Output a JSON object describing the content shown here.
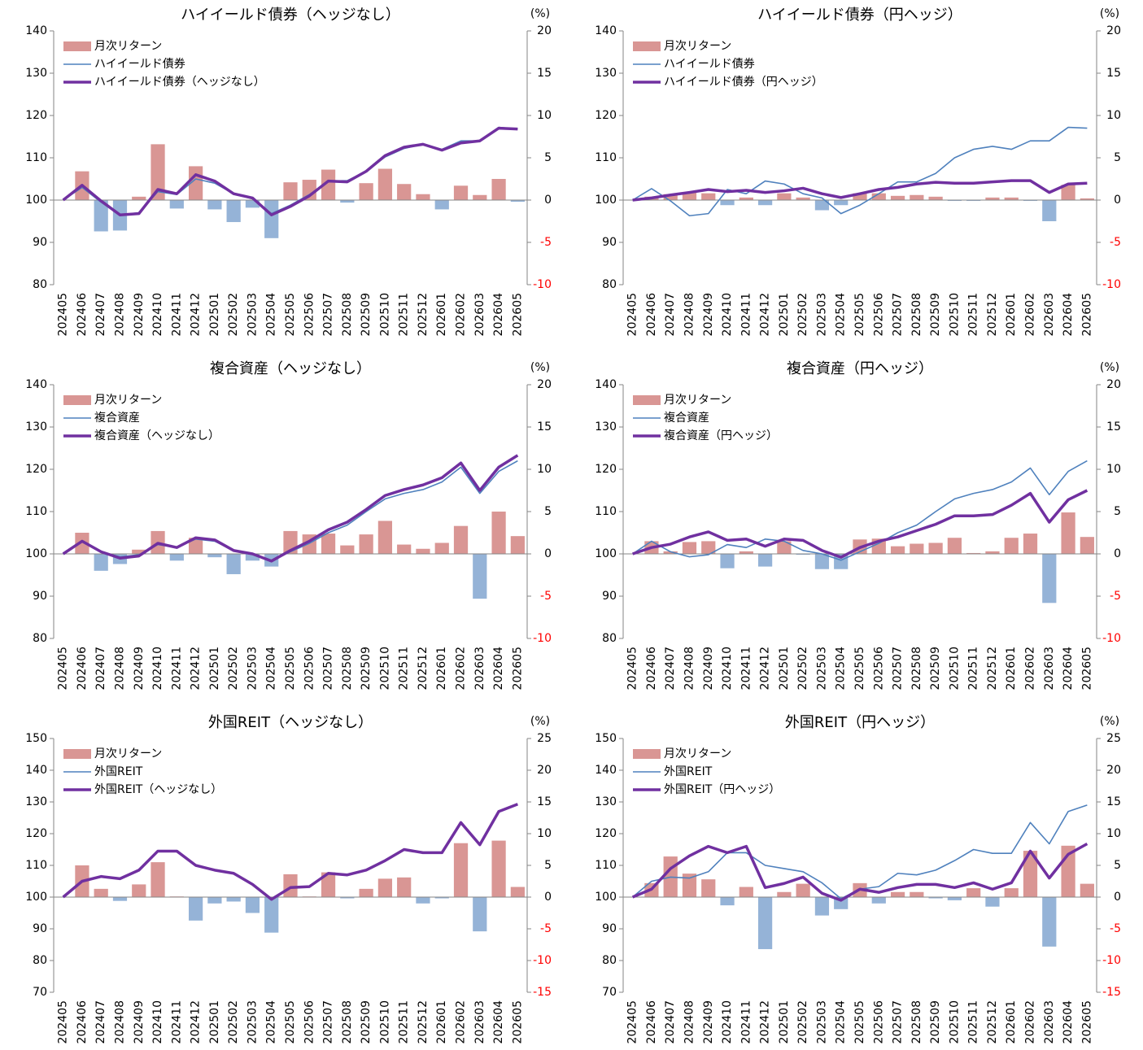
{
  "chart_data": [
    {
      "type": "bar_line",
      "title": "ハイイールド債券（ヘッジなし）",
      "y2label": "(%)",
      "legend": "upper left",
      "categories": [
        "202405",
        "202406",
        "202407",
        "202408",
        "202409",
        "202410",
        "202411",
        "202412",
        "202501",
        "202502",
        "202503",
        "202504",
        "202505",
        "202506",
        "202507",
        "202508",
        "202509",
        "202510",
        "202511",
        "202512",
        "202601",
        "202602",
        "202603",
        "202604",
        "202605"
      ],
      "ylim": [
        80,
        140
      ],
      "yticks": [
        80,
        90,
        100,
        110,
        120,
        130,
        140
      ],
      "y2lim": [
        -10,
        20
      ],
      "y2ticks": [
        -10,
        -5,
        0,
        5,
        10,
        15,
        20
      ],
      "y2tick_negative_color": "#ff0000",
      "series": [
        {
          "name": "月次リターン",
          "type": "bar",
          "axis": "y2",
          "color": "#d99694",
          "negative_color": "#95b3d7",
          "values": [
            null,
            3.4,
            -3.7,
            -3.6,
            0.4,
            6.6,
            -1.0,
            4.0,
            -1.1,
            -2.6,
            -0.9,
            -4.5,
            2.1,
            2.4,
            3.6,
            -0.3,
            2.0,
            3.7,
            1.9,
            0.7,
            -1.1,
            1.7,
            0.6,
            2.5,
            -0.2
          ]
        },
        {
          "name": "ハイイールド債券",
          "type": "line",
          "color": "#4f81bd",
          "values": [
            100,
            103,
            99.5,
            96.5,
            97.0,
            102,
            101.3,
            105,
            104,
            101.5,
            100.3,
            96.8,
            98.8,
            101.3,
            104.5,
            104.6,
            106.8,
            110.2,
            112.2,
            113.2,
            112,
            114,
            114,
            117.2,
            116.8
          ]
        },
        {
          "name": "ハイイールド債券（ヘッジなし）",
          "type": "line",
          "color": "#7030a0",
          "values": [
            100,
            103.5,
            99.8,
            96.5,
            96.8,
            102.5,
            101.5,
            106,
            104.5,
            101.5,
            100.5,
            96.5,
            98.5,
            101,
            104.5,
            104.3,
            106.8,
            110.5,
            112.5,
            113.2,
            111.8,
            113.5,
            114,
            117,
            116.8
          ]
        }
      ]
    },
    {
      "type": "bar_line",
      "title": "ハイイールド債券（円ヘッジ）",
      "y2label": "(%)",
      "legend": "upper left",
      "categories": [
        "202405",
        "202406",
        "202407",
        "202408",
        "202409",
        "202410",
        "202411",
        "202412",
        "202501",
        "202502",
        "202503",
        "202504",
        "202505",
        "202506",
        "202507",
        "202508",
        "202509",
        "202510",
        "202511",
        "202512",
        "202601",
        "202602",
        "202603",
        "202604",
        "202605"
      ],
      "ylim": [
        80,
        140
      ],
      "yticks": [
        80,
        90,
        100,
        110,
        120,
        130,
        140
      ],
      "y2lim": [
        -10,
        20
      ],
      "y2ticks": [
        -10,
        -5,
        0,
        5,
        10,
        15,
        20
      ],
      "y2tick_negative_color": "#ff0000",
      "series": [
        {
          "name": "月次リターン",
          "type": "bar",
          "axis": "y2",
          "color": "#d99694",
          "negative_color": "#95b3d7",
          "values": [
            null,
            0.4,
            0.7,
            0.9,
            0.8,
            -0.6,
            0.3,
            -0.6,
            0.8,
            0.3,
            -1.2,
            -0.6,
            0.8,
            0.8,
            0.5,
            0.6,
            0.4,
            -0.1,
            -0.1,
            0.3,
            0.3,
            -0.1,
            -2.5,
            1.8,
            0.2
          ]
        },
        {
          "name": "ハイイールド債券",
          "type": "line",
          "color": "#4f81bd",
          "values": [
            100,
            102.7,
            99.8,
            96.3,
            96.8,
            102.5,
            101.5,
            104.5,
            103.8,
            101.5,
            100.5,
            96.8,
            98.8,
            101.5,
            104.3,
            104.3,
            106.3,
            110,
            112,
            112.7,
            112,
            114,
            114,
            117.2,
            117
          ]
        },
        {
          "name": "ハイイールド債券（円ヘッジ）",
          "type": "line",
          "color": "#7030a0",
          "values": [
            100,
            100.5,
            101.2,
            101.8,
            102.5,
            102,
            102.3,
            101.8,
            102.2,
            102.8,
            101.5,
            100.6,
            101.5,
            102.5,
            103,
            103.8,
            104.2,
            104,
            104,
            104.3,
            104.6,
            104.6,
            101.8,
            103.8,
            104
          ]
        }
      ]
    },
    {
      "type": "bar_line",
      "title": "複合資産（ヘッジなし）",
      "y2label": "(%)",
      "legend": "upper left",
      "categories": [
        "202405",
        "202406",
        "202407",
        "202408",
        "202409",
        "202410",
        "202411",
        "202412",
        "202501",
        "202502",
        "202503",
        "202504",
        "202505",
        "202506",
        "202507",
        "202508",
        "202509",
        "202510",
        "202511",
        "202512",
        "202601",
        "202602",
        "202603",
        "202604",
        "202605"
      ],
      "ylim": [
        80,
        140
      ],
      "yticks": [
        80,
        90,
        100,
        110,
        120,
        130,
        140
      ],
      "y2lim": [
        -10,
        20
      ],
      "y2ticks": [
        -10,
        -5,
        0,
        5,
        10,
        15,
        20
      ],
      "y2tick_negative_color": "#ff0000",
      "series": [
        {
          "name": "月次リターン",
          "type": "bar",
          "axis": "y2",
          "color": "#d99694",
          "negative_color": "#95b3d7",
          "values": [
            null,
            2.5,
            -2.0,
            -1.2,
            0.5,
            2.7,
            -0.8,
            1.9,
            -0.4,
            -2.4,
            -0.8,
            -1.5,
            2.7,
            2.3,
            2.4,
            1.0,
            2.3,
            3.9,
            1.1,
            0.6,
            1.3,
            3.3,
            -5.3,
            5.0,
            2.1
          ]
        },
        {
          "name": "複合資産",
          "type": "line",
          "color": "#4f81bd",
          "values": [
            100,
            103,
            100.5,
            99.3,
            99.8,
            102.2,
            101.5,
            103.5,
            103,
            100.8,
            100,
            98.5,
            100.5,
            102.5,
            105,
            106.8,
            110,
            113,
            114.3,
            115.2,
            117,
            120.5,
            114.3,
            119.5,
            122
          ]
        },
        {
          "name": "複合資産（ヘッジなし）",
          "type": "line",
          "color": "#7030a0",
          "values": [
            100,
            103,
            100.5,
            99,
            99.5,
            102.5,
            101.5,
            103.8,
            103.3,
            100.8,
            100,
            98.3,
            100.8,
            103,
            105.7,
            107.5,
            110.5,
            113.8,
            115.2,
            116.3,
            118,
            121.5,
            115,
            120.5,
            123.3
          ]
        }
      ]
    },
    {
      "type": "bar_line",
      "title": "複合資産（円ヘッジ）",
      "y2label": "(%)",
      "legend": "upper left",
      "categories": [
        "202405",
        "202406",
        "202407",
        "202408",
        "202409",
        "202410",
        "202411",
        "202412",
        "202501",
        "202502",
        "202503",
        "202504",
        "202505",
        "202506",
        "202507",
        "202508",
        "202509",
        "202510",
        "202511",
        "202512",
        "202601",
        "202602",
        "202603",
        "202604",
        "202605"
      ],
      "ylim": [
        80,
        140
      ],
      "yticks": [
        80,
        90,
        100,
        110,
        120,
        130,
        140
      ],
      "y2lim": [
        -10,
        20
      ],
      "y2ticks": [
        -10,
        -5,
        0,
        5,
        10,
        15,
        20
      ],
      "y2tick_negative_color": "#ff0000",
      "series": [
        {
          "name": "月次リターン",
          "type": "bar",
          "axis": "y2",
          "color": "#d99694",
          "negative_color": "#95b3d7",
          "values": [
            null,
            1.5,
            0.3,
            1.4,
            1.5,
            -1.7,
            0.3,
            -1.5,
            1.5,
            -0.1,
            -1.8,
            -1.8,
            1.7,
            1.8,
            0.9,
            1.2,
            1.3,
            1.9,
            0.1,
            0.3,
            1.9,
            2.4,
            -5.8,
            4.9,
            2.0
          ]
        },
        {
          "name": "複合資産",
          "type": "line",
          "color": "#4f81bd",
          "values": [
            100,
            103,
            100.5,
            99.3,
            99.8,
            102.2,
            101.5,
            103.5,
            103,
            100.8,
            100,
            98.5,
            100.5,
            102.5,
            105,
            106.8,
            110,
            113,
            114.3,
            115.2,
            117,
            120.3,
            114,
            119.5,
            122
          ]
        },
        {
          "name": "複合資産（円ヘッジ）",
          "type": "line",
          "color": "#7030a0",
          "values": [
            100,
            101.5,
            102.3,
            104,
            105.2,
            103.2,
            103.5,
            101.8,
            103.5,
            103.2,
            100.8,
            99.2,
            101.5,
            103,
            104,
            105.5,
            107,
            109,
            109,
            109.3,
            111.5,
            114.3,
            107.5,
            112.8,
            115
          ]
        }
      ]
    },
    {
      "type": "bar_line",
      "title": "外国REIT（ヘッジなし）",
      "y2label": "(%)",
      "legend": "upper left",
      "categories": [
        "202405",
        "202406",
        "202407",
        "202408",
        "202409",
        "202410",
        "202411",
        "202412",
        "202501",
        "202502",
        "202503",
        "202504",
        "202505",
        "202506",
        "202507",
        "202508",
        "202509",
        "202510",
        "202511",
        "202512",
        "202601",
        "202602",
        "202603",
        "202604",
        "202605"
      ],
      "ylim": [
        70,
        150
      ],
      "yticks": [
        70,
        80,
        90,
        100,
        110,
        120,
        130,
        140,
        150
      ],
      "y2lim": [
        -15,
        25
      ],
      "y2ticks": [
        -15,
        -10,
        -5,
        0,
        5,
        10,
        15,
        20,
        25
      ],
      "y2tick_negative_color": "#ff0000",
      "series": [
        {
          "name": "月次リターン",
          "type": "bar",
          "axis": "y2",
          "color": "#d99694",
          "negative_color": "#95b3d7",
          "values": [
            null,
            5.0,
            1.3,
            -0.6,
            2.0,
            5.5,
            0.1,
            -3.7,
            -1.0,
            -0.7,
            -2.5,
            -5.6,
            3.6,
            0.1,
            3.9,
            -0.2,
            1.3,
            2.9,
            3.1,
            -1.0,
            -0.2,
            8.5,
            -5.4,
            8.9,
            1.6
          ]
        },
        {
          "name": "外国REIT",
          "type": "line",
          "color": "#4f81bd",
          "values": [
            100,
            105,
            106.3,
            105.7,
            108.3,
            114.3,
            114.3,
            110,
            108.6,
            107.5,
            104,
            99.5,
            103,
            103.3,
            107.3,
            107,
            108.5,
            111.5,
            115,
            114,
            114,
            123.5,
            116.5,
            127,
            129.2
          ]
        },
        {
          "name": "外国REIT（ヘッジなし）",
          "type": "line",
          "color": "#7030a0",
          "values": [
            100,
            105,
            106.5,
            105.8,
            108.5,
            114.5,
            114.5,
            110,
            108.5,
            107.5,
            104,
            99.3,
            103,
            103.3,
            107.5,
            107,
            108.5,
            111.5,
            115,
            114,
            114,
            123.5,
            116.5,
            127,
            129.3
          ]
        }
      ]
    },
    {
      "type": "bar_line",
      "title": "外国REIT（円ヘッジ）",
      "y2label": "(%)",
      "legend": "upper left",
      "categories": [
        "202405",
        "202406",
        "202407",
        "202408",
        "202409",
        "202410",
        "202411",
        "202412",
        "202501",
        "202502",
        "202503",
        "202504",
        "202505",
        "202506",
        "202507",
        "202508",
        "202509",
        "202510",
        "202511",
        "202512",
        "202601",
        "202602",
        "202603",
        "202604",
        "202605"
      ],
      "ylim": [
        70,
        150
      ],
      "yticks": [
        70,
        80,
        90,
        100,
        110,
        120,
        130,
        140,
        150
      ],
      "y2lim": [
        -15,
        25
      ],
      "y2ticks": [
        -15,
        -10,
        -5,
        0,
        5,
        10,
        15,
        20,
        25
      ],
      "y2tick_negative_color": "#ff0000",
      "series": [
        {
          "name": "月次リターン",
          "type": "bar",
          "axis": "y2",
          "color": "#d99694",
          "negative_color": "#95b3d7",
          "values": [
            null,
            2.2,
            6.4,
            3.7,
            2.8,
            -1.3,
            1.6,
            -8.2,
            0.8,
            2.1,
            -2.9,
            -1.9,
            2.2,
            -1.0,
            0.8,
            0.8,
            -0.2,
            -0.5,
            1.4,
            -1.5,
            1.4,
            7.3,
            -7.8,
            8.1,
            2.1
          ]
        },
        {
          "name": "外国REIT",
          "type": "line",
          "color": "#4f81bd",
          "values": [
            100,
            105,
            106.3,
            106,
            108,
            114,
            114,
            110,
            109,
            108,
            104.5,
            99.5,
            102.5,
            103.3,
            107.5,
            107,
            108.5,
            111.5,
            115,
            113.8,
            113.8,
            123.5,
            116.8,
            127,
            129
          ]
        },
        {
          "name": "外国REIT（円ヘッジ）",
          "type": "line",
          "color": "#7030a0",
          "values": [
            100,
            102.5,
            109,
            113,
            116,
            114,
            116,
            103,
            104.3,
            106.3,
            101.2,
            99,
            102.5,
            101.5,
            103,
            104,
            104,
            103,
            104.5,
            102.5,
            104.5,
            114.5,
            106,
            113.5,
            116.8
          ]
        }
      ]
    }
  ]
}
